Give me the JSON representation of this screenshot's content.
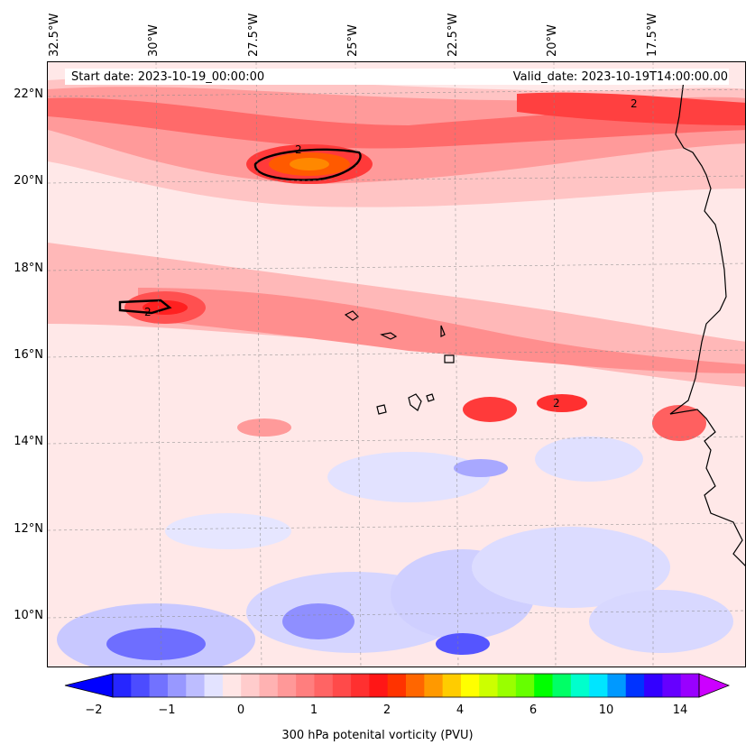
{
  "map": {
    "title_left": "Start date: 2023-10-19_00:00:00",
    "title_right": "Valid_date: 2023-10-19T14:00:00.00",
    "lon_ticks": [
      "32.5°W",
      "30°W",
      "27.5°W",
      "25°W",
      "22.5°W",
      "20°W",
      "17.5°W"
    ],
    "lat_ticks": [
      "22°N",
      "20°N",
      "18°N",
      "16°N",
      "14°N",
      "12°N",
      "10°N"
    ],
    "contour_label": "2",
    "extent": {
      "lon_min": -32.5,
      "lon_max": -15.0,
      "lat_min": 8.9,
      "lat_max": 22.8
    }
  },
  "colorbar": {
    "label": "300 hPa potenital vorticity (PVU)",
    "ticks": [
      "−2",
      "−1",
      "0",
      "1",
      "2",
      "4",
      "6",
      "10",
      "14"
    ],
    "colors": [
      "#0000ff",
      "#2626ff",
      "#4c4cff",
      "#7272ff",
      "#9898ff",
      "#bdbdff",
      "#e3e3ff",
      "#ffe6e6",
      "#ffcccc",
      "#ffb2b2",
      "#ff9898",
      "#ff7e7e",
      "#ff6464",
      "#ff4a4a",
      "#ff3030",
      "#ff1616",
      "#ff3300",
      "#ff6600",
      "#ff9900",
      "#ffcc00",
      "#ffff00",
      "#ccff00",
      "#99ff00",
      "#66ff00",
      "#00ff00",
      "#00ff66",
      "#00ffcc",
      "#00e5ff",
      "#0099ff",
      "#0033ff",
      "#3300ff",
      "#6600ff",
      "#9900ff",
      "#cc00ff"
    ]
  }
}
